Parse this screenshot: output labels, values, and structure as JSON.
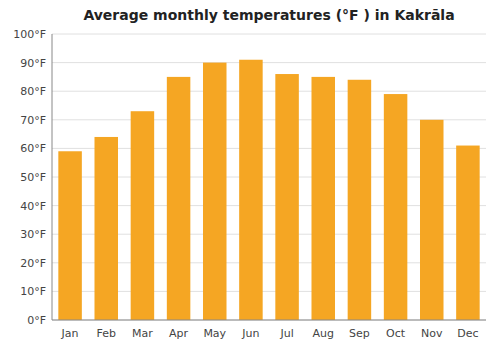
{
  "chart_data": {
    "type": "bar",
    "title": "Average monthly temperatures (°F ) in Kakrāla",
    "categories": [
      "Jan",
      "Feb",
      "Mar",
      "Apr",
      "May",
      "Jun",
      "Jul",
      "Aug",
      "Sep",
      "Oct",
      "Nov",
      "Dec"
    ],
    "values": [
      59,
      64,
      73,
      85,
      90,
      91,
      86,
      85,
      84,
      79,
      70,
      61
    ],
    "color": "#F5A623",
    "ylim": [
      0,
      100
    ],
    "yticks": [
      {
        "value": 0,
        "label": "0°F"
      },
      {
        "value": 10,
        "label": "10°F"
      },
      {
        "value": 20,
        "label": "20°F"
      },
      {
        "value": 30,
        "label": "30°F"
      },
      {
        "value": 40,
        "label": "40°F"
      },
      {
        "value": 50,
        "label": "50°F"
      },
      {
        "value": 60,
        "label": "60°F"
      },
      {
        "value": 70,
        "label": "70°F"
      },
      {
        "value": 80,
        "label": "80°F"
      },
      {
        "value": 90,
        "label": "90°F"
      },
      {
        "value": 100,
        "label": "100°F"
      }
    ],
    "grid": true
  }
}
